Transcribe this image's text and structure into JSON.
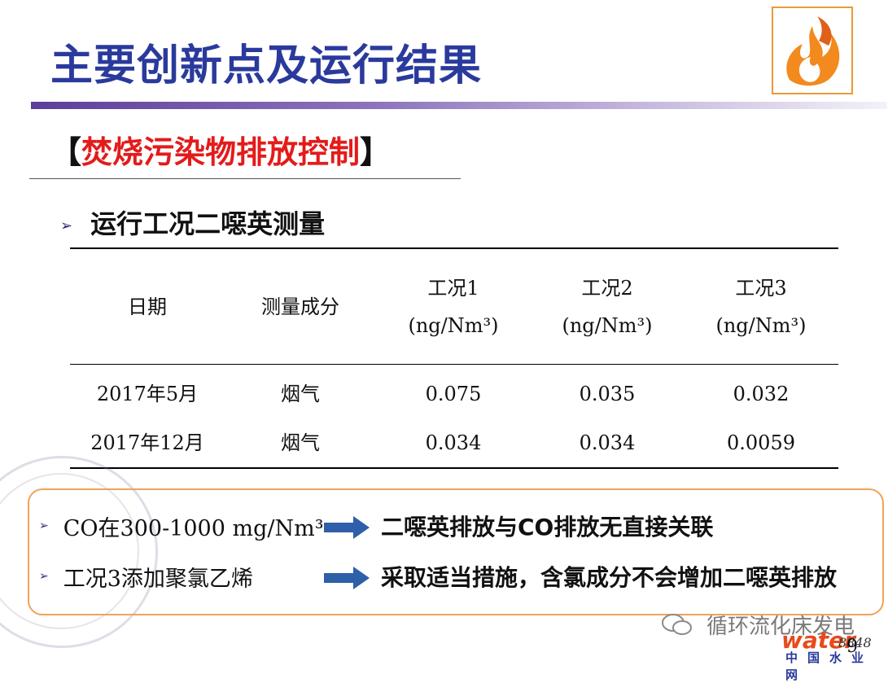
{
  "slide": {
    "title": "主要创新点及运行结果",
    "section_open": "【",
    "section_title": "焚烧污染物排放控制",
    "section_close": "】",
    "subheading": "运行工况二噁英测量",
    "bullet_symbol": "➢",
    "page_number": "9"
  },
  "table": {
    "headers": [
      {
        "line1": "日期",
        "line2": ""
      },
      {
        "line1": "测量成分",
        "line2": ""
      },
      {
        "line1": "工况1",
        "line2": "(ng/Nm³)"
      },
      {
        "line1": "工况2",
        "line2": "(ng/Nm³)"
      },
      {
        "line1": "工况3",
        "line2": "(ng/Nm³)"
      }
    ],
    "rows": [
      [
        "2017年5月",
        "烟气",
        "0.075",
        "0.035",
        "0.032"
      ],
      [
        "2017年12月",
        "烟气",
        "0.034",
        "0.034",
        "0.0059"
      ]
    ]
  },
  "conclusions": [
    {
      "condition": "CO在300-1000 mg/Nm³",
      "result": "二噁英排放与CO排放无直接关联"
    },
    {
      "condition": "工况3添加聚氯乙烯",
      "result": "采取适当措施，含氯成分不会增加二噁英排放"
    }
  ],
  "watermark": {
    "text": "循环流化床发电",
    "brand": "water",
    "brand_num": "8848",
    "brand_sub": "中国水业网"
  },
  "colors": {
    "title": "#2a3a9c",
    "section_highlight": "#e31b1b",
    "box_border": "#f0a25a",
    "arrow_fill": "#2e5fa8"
  }
}
